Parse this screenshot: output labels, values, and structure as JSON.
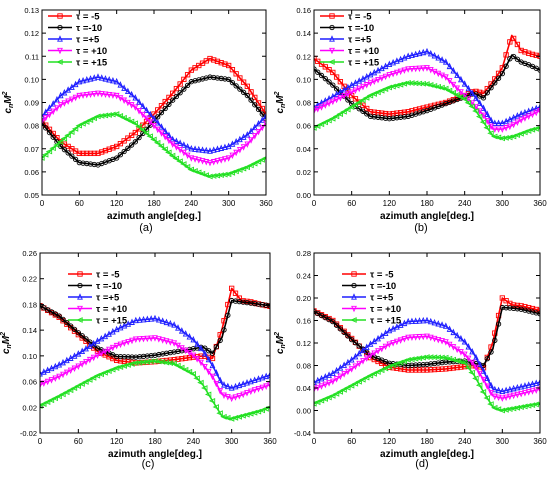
{
  "figure": {
    "legend_labels": [
      "τ = -5",
      "τ =-10",
      "τ =+5",
      "τ = +10",
      "τ = +15"
    ],
    "colors": {
      "tau_minus5": "#ff0000",
      "tau_minus10": "#000000",
      "tau_plus5": "#1f1fff",
      "tau_plus10": "#ff00ff",
      "tau_plus15": "#22e022"
    },
    "markers": {
      "tau_minus5": "square",
      "tau_minus10": "circle",
      "tau_plus5": "triangle-up",
      "tau_plus10": "triangle-down",
      "tau_plus15": "triangle-left"
    }
  },
  "chart_data": [
    {
      "panel_label": "(a)",
      "type": "line",
      "xlabel": "azimuth angle[deg.]",
      "ylabel": "cnM2",
      "xlim": [
        0,
        360
      ],
      "ylim": [
        0.05,
        0.13
      ],
      "x_ticks": [
        "0",
        "60",
        "120",
        "180",
        "240",
        "300",
        "360"
      ],
      "y_ticks": [
        "0.05",
        "0.06",
        "0.07",
        "0.08",
        "0.09",
        "0.10",
        "0.11",
        "0.12",
        "0.13"
      ],
      "grid": false,
      "legend": "top-left",
      "x": [
        0,
        30,
        60,
        90,
        120,
        150,
        180,
        210,
        240,
        270,
        300,
        330,
        360
      ],
      "series": [
        {
          "name": "τ = -5",
          "values": [
            0.082,
            0.073,
            0.068,
            0.068,
            0.071,
            0.077,
            0.085,
            0.094,
            0.104,
            0.109,
            0.106,
            0.097,
            0.085
          ]
        },
        {
          "name": "τ =-10",
          "values": [
            0.081,
            0.071,
            0.064,
            0.063,
            0.066,
            0.073,
            0.082,
            0.091,
            0.099,
            0.101,
            0.1,
            0.093,
            0.083
          ]
        },
        {
          "name": "τ =+5",
          "values": [
            0.084,
            0.093,
            0.099,
            0.101,
            0.099,
            0.092,
            0.083,
            0.074,
            0.07,
            0.069,
            0.071,
            0.076,
            0.084
          ]
        },
        {
          "name": "τ = +10",
          "values": [
            0.082,
            0.089,
            0.093,
            0.094,
            0.093,
            0.088,
            0.08,
            0.072,
            0.066,
            0.064,
            0.066,
            0.072,
            0.081
          ]
        },
        {
          "name": "τ = +15",
          "values": [
            0.066,
            0.073,
            0.08,
            0.084,
            0.085,
            0.081,
            0.074,
            0.067,
            0.061,
            0.058,
            0.059,
            0.062,
            0.066
          ]
        }
      ]
    },
    {
      "panel_label": "(b)",
      "type": "line",
      "xlabel": "azimuth angle[deg.]",
      "ylabel": "cnM2",
      "xlim": [
        0,
        360
      ],
      "ylim": [
        0.0,
        0.16
      ],
      "x_ticks": [
        "0",
        "60",
        "120",
        "180",
        "240",
        "300",
        "360"
      ],
      "y_ticks": [
        "0.00",
        "0.02",
        "0.04",
        "0.06",
        "0.08",
        "0.10",
        "0.12",
        "0.14",
        "0.16"
      ],
      "grid": false,
      "legend": "top-left",
      "x": [
        0,
        30,
        60,
        90,
        120,
        150,
        180,
        210,
        240,
        255,
        270,
        285,
        300,
        315,
        330,
        345,
        360
      ],
      "series": [
        {
          "name": "τ = -5",
          "values": [
            0.118,
            0.106,
            0.086,
            0.072,
            0.07,
            0.072,
            0.076,
            0.08,
            0.086,
            0.09,
            0.088,
            0.098,
            0.11,
            0.138,
            0.125,
            0.122,
            0.12
          ]
        },
        {
          "name": "τ =-10",
          "values": [
            0.109,
            0.095,
            0.079,
            0.068,
            0.066,
            0.068,
            0.073,
            0.079,
            0.085,
            0.088,
            0.084,
            0.095,
            0.105,
            0.121,
            0.115,
            0.112,
            0.108
          ]
        },
        {
          "name": "τ =+5",
          "values": [
            0.076,
            0.085,
            0.095,
            0.104,
            0.113,
            0.12,
            0.124,
            0.115,
            0.096,
            0.086,
            0.075,
            0.062,
            0.062,
            0.066,
            0.07,
            0.073,
            0.076
          ]
        },
        {
          "name": "τ = +10",
          "values": [
            0.073,
            0.081,
            0.089,
            0.097,
            0.104,
            0.109,
            0.11,
            0.102,
            0.086,
            0.078,
            0.069,
            0.057,
            0.057,
            0.06,
            0.065,
            0.069,
            0.073
          ]
        },
        {
          "name": "τ = +15",
          "values": [
            0.058,
            0.066,
            0.076,
            0.086,
            0.093,
            0.097,
            0.096,
            0.092,
            0.083,
            0.075,
            0.063,
            0.051,
            0.049,
            0.05,
            0.053,
            0.056,
            0.058
          ]
        }
      ]
    },
    {
      "panel_label": "(c)",
      "type": "line",
      "xlabel": "azimuth angle[deg.]",
      "ylabel": "cnM2",
      "xlim": [
        0,
        360
      ],
      "ylim": [
        -0.02,
        0.26
      ],
      "x_ticks": [
        "0",
        "60",
        "120",
        "180",
        "240",
        "300",
        "360"
      ],
      "y_ticks": [
        "-0.02",
        "0.02",
        "0.06",
        "0.10",
        "0.14",
        "0.18",
        "0.22",
        "0.26"
      ],
      "grid": false,
      "legend": "top-right",
      "x": [
        0,
        30,
        60,
        90,
        120,
        150,
        180,
        210,
        240,
        255,
        270,
        285,
        300,
        315,
        330,
        345,
        360
      ],
      "series": [
        {
          "name": "τ = -5",
          "values": [
            0.178,
            0.16,
            0.133,
            0.107,
            0.093,
            0.089,
            0.091,
            0.094,
            0.098,
            0.1,
            0.096,
            0.142,
            0.205,
            0.186,
            0.184,
            0.18,
            0.177
          ]
        },
        {
          "name": "τ =-10",
          "values": [
            0.178,
            0.162,
            0.136,
            0.112,
            0.099,
            0.098,
            0.101,
            0.106,
            0.111,
            0.114,
            0.104,
            0.129,
            0.186,
            0.184,
            0.182,
            0.18,
            0.178
          ]
        },
        {
          "name": "τ =+5",
          "values": [
            0.072,
            0.086,
            0.103,
            0.123,
            0.141,
            0.155,
            0.158,
            0.148,
            0.125,
            0.108,
            0.085,
            0.056,
            0.05,
            0.055,
            0.06,
            0.065,
            0.07
          ]
        },
        {
          "name": "τ = +10",
          "values": [
            0.055,
            0.068,
            0.084,
            0.101,
            0.116,
            0.126,
            0.128,
            0.12,
            0.101,
            0.087,
            0.068,
            0.04,
            0.034,
            0.039,
            0.045,
            0.05,
            0.055
          ]
        },
        {
          "name": "τ = +15",
          "values": [
            0.022,
            0.037,
            0.053,
            0.069,
            0.081,
            0.089,
            0.092,
            0.088,
            0.072,
            0.055,
            0.03,
            0.006,
            0.002,
            0.006,
            0.01,
            0.014,
            0.02
          ]
        }
      ]
    },
    {
      "panel_label": "(d)",
      "type": "line",
      "xlabel": "azimuth angle[deg.]",
      "ylabel": "cnM2",
      "xlim": [
        0,
        360
      ],
      "ylim": [
        -0.04,
        0.28
      ],
      "x_ticks": [
        "0",
        "60",
        "120",
        "180",
        "240",
        "300",
        "360"
      ],
      "y_ticks": [
        "-0.04",
        "0.00",
        "0.04",
        "0.08",
        "0.12",
        "0.16",
        "0.20",
        "0.24",
        "0.28"
      ],
      "grid": false,
      "legend": "top-right",
      "x": [
        0,
        30,
        60,
        90,
        120,
        150,
        180,
        210,
        240,
        255,
        270,
        285,
        300,
        315,
        330,
        345,
        360
      ],
      "series": [
        {
          "name": "τ = -5",
          "values": [
            0.177,
            0.16,
            0.128,
            0.094,
            0.077,
            0.072,
            0.072,
            0.074,
            0.078,
            0.08,
            0.076,
            0.122,
            0.2,
            0.188,
            0.186,
            0.182,
            0.178
          ]
        },
        {
          "name": "τ =-10",
          "values": [
            0.176,
            0.158,
            0.126,
            0.098,
            0.084,
            0.08,
            0.082,
            0.086,
            0.088,
            0.084,
            0.08,
            0.11,
            0.183,
            0.182,
            0.18,
            0.176,
            0.172
          ]
        },
        {
          "name": "τ =+5",
          "values": [
            0.05,
            0.066,
            0.09,
            0.118,
            0.142,
            0.158,
            0.16,
            0.15,
            0.122,
            0.1,
            0.07,
            0.038,
            0.034,
            0.038,
            0.042,
            0.046,
            0.05
          ]
        },
        {
          "name": "τ = +10",
          "values": [
            0.038,
            0.052,
            0.074,
            0.098,
            0.118,
            0.13,
            0.132,
            0.122,
            0.1,
            0.082,
            0.055,
            0.026,
            0.022,
            0.026,
            0.03,
            0.034,
            0.038
          ]
        },
        {
          "name": "τ = +15",
          "values": [
            0.012,
            0.026,
            0.044,
            0.062,
            0.078,
            0.09,
            0.095,
            0.094,
            0.085,
            0.063,
            0.033,
            0.006,
            0.0,
            0.003,
            0.006,
            0.009,
            0.012
          ]
        }
      ]
    }
  ]
}
